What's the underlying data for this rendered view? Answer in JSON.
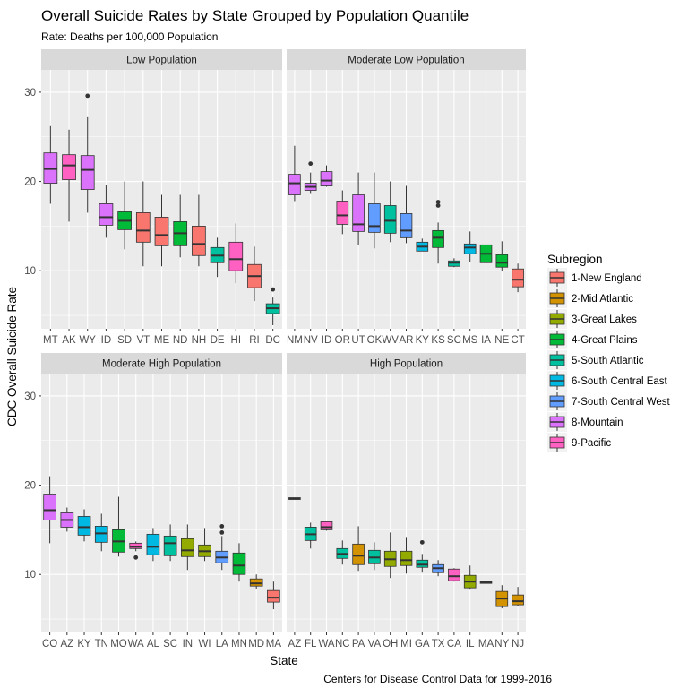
{
  "chart_data": {
    "type": "boxplot",
    "title": "Overall Suicide Rates by State Grouped by Population Quantile",
    "subtitle": "Rate: Deaths per 100,000 Population",
    "xlabel": "State",
    "ylabel": "CDC Overall Suicide Rate",
    "caption": "Centers for Disease Control Data for 1999-2016",
    "ylim": [
      3.5,
      32.5
    ],
    "y_ticks": [
      10,
      20,
      30
    ],
    "grid": true,
    "legend": {
      "title": "Subregion",
      "position": "right",
      "entries": [
        {
          "label": "1-New England",
          "color": "#F8766D"
        },
        {
          "label": "2-Mid Atlantic",
          "color": "#D39200"
        },
        {
          "label": "3-Great Lakes",
          "color": "#93AA00"
        },
        {
          "label": "4-Great Plains",
          "color": "#00BA38"
        },
        {
          "label": "5-South Atlantic",
          "color": "#00C19F"
        },
        {
          "label": "6-South Central East",
          "color": "#00B9E3"
        },
        {
          "label": "7-South Central West",
          "color": "#619CFF"
        },
        {
          "label": "8-Mountain",
          "color": "#DB72FB"
        },
        {
          "label": "9-Pacific",
          "color": "#FF61C3"
        }
      ]
    },
    "panels": [
      {
        "strip": "Low Population",
        "boxes": [
          {
            "state": "MT",
            "sub": 7,
            "lw": 17.5,
            "q1": 19.8,
            "med": 21.4,
            "q3": 23.2,
            "uw": 26.2,
            "out": []
          },
          {
            "state": "AK",
            "sub": 8,
            "lw": 15.5,
            "q1": 20.2,
            "med": 21.8,
            "q3": 23.0,
            "uw": 25.8,
            "out": []
          },
          {
            "state": "WY",
            "sub": 7,
            "lw": 16.5,
            "q1": 19.1,
            "med": 21.3,
            "q3": 22.9,
            "uw": 27.2,
            "out": [
              29.6
            ]
          },
          {
            "state": "ID",
            "sub": 7,
            "lw": 13.7,
            "q1": 15.1,
            "med": 16.0,
            "q3": 17.5,
            "uw": 19.6,
            "out": []
          },
          {
            "state": "SD",
            "sub": 3,
            "lw": 12.4,
            "q1": 14.6,
            "med": 15.6,
            "q3": 16.6,
            "uw": 20.0,
            "out": []
          },
          {
            "state": "VT",
            "sub": 0,
            "lw": 10.5,
            "q1": 13.2,
            "med": 14.5,
            "q3": 16.5,
            "uw": 20.0,
            "out": []
          },
          {
            "state": "ME",
            "sub": 0,
            "lw": 10.5,
            "q1": 12.8,
            "med": 14.0,
            "q3": 16.0,
            "uw": 18.5,
            "out": []
          },
          {
            "state": "ND",
            "sub": 3,
            "lw": 11.5,
            "q1": 12.8,
            "med": 14.2,
            "q3": 15.5,
            "uw": 18.5,
            "out": []
          },
          {
            "state": "NH",
            "sub": 0,
            "lw": 10.5,
            "q1": 11.7,
            "med": 13.0,
            "q3": 15.0,
            "uw": 18.5,
            "out": []
          },
          {
            "state": "DE",
            "sub": 4,
            "lw": 9.3,
            "q1": 10.9,
            "med": 11.7,
            "q3": 12.6,
            "uw": 13.7,
            "out": []
          },
          {
            "state": "HI",
            "sub": 8,
            "lw": 8.6,
            "q1": 10.0,
            "med": 11.3,
            "q3": 13.2,
            "uw": 15.3,
            "out": []
          },
          {
            "state": "RI",
            "sub": 0,
            "lw": 6.6,
            "q1": 8.1,
            "med": 9.4,
            "q3": 10.7,
            "uw": 12.7,
            "out": []
          },
          {
            "state": "DC",
            "sub": 4,
            "lw": 3.9,
            "q1": 5.2,
            "med": 5.8,
            "q3": 6.3,
            "uw": 7.0,
            "out": [
              7.9
            ]
          }
        ]
      },
      {
        "strip": "Moderate Low Population",
        "boxes": [
          {
            "state": "NM",
            "sub": 7,
            "lw": 17.8,
            "q1": 18.5,
            "med": 19.8,
            "q3": 20.8,
            "uw": 24.0,
            "out": []
          },
          {
            "state": "NV",
            "sub": 7,
            "lw": 18.6,
            "q1": 19.0,
            "med": 19.4,
            "q3": 19.8,
            "uw": 21.0,
            "out": [
              22.0
            ]
          },
          {
            "state": "ID",
            "sub": 7,
            "lw": 19.4,
            "q1": 19.5,
            "med": 20.1,
            "q3": 21.1,
            "uw": 21.8,
            "out": []
          },
          {
            "state": "OR",
            "sub": 8,
            "lw": 14.1,
            "q1": 15.2,
            "med": 16.2,
            "q3": 17.8,
            "uw": 19.0,
            "out": []
          },
          {
            "state": "UT",
            "sub": 7,
            "lw": 12.9,
            "q1": 14.4,
            "med": 15.2,
            "q3": 18.5,
            "uw": 21.0,
            "out": []
          },
          {
            "state": "OK",
            "sub": 6,
            "lw": 12.5,
            "q1": 14.3,
            "med": 15.0,
            "q3": 17.5,
            "uw": 21.0,
            "out": []
          },
          {
            "state": "WV",
            "sub": 4,
            "lw": 13.2,
            "q1": 14.2,
            "med": 15.6,
            "q3": 17.3,
            "uw": 20.0,
            "out": []
          },
          {
            "state": "AR",
            "sub": 6,
            "lw": 13.1,
            "q1": 13.7,
            "med": 14.5,
            "q3": 16.4,
            "uw": 19.5,
            "out": []
          },
          {
            "state": "KY",
            "sub": 5,
            "lw": 12.2,
            "q1": 12.2,
            "med": 12.7,
            "q3": 13.2,
            "uw": 13.6,
            "out": []
          },
          {
            "state": "KS",
            "sub": 3,
            "lw": 10.8,
            "q1": 12.6,
            "med": 13.7,
            "q3": 14.5,
            "uw": 15.4,
            "out": [
              17.3,
              17.7
            ]
          },
          {
            "state": "SC",
            "sub": 4,
            "lw": 10.4,
            "q1": 10.5,
            "med": 10.9,
            "q3": 11.1,
            "uw": 11.4,
            "out": []
          },
          {
            "state": "MS",
            "sub": 5,
            "lw": 11.0,
            "q1": 11.9,
            "med": 12.6,
            "q3": 13.0,
            "uw": 14.4,
            "out": []
          },
          {
            "state": "IA",
            "sub": 3,
            "lw": 9.9,
            "q1": 10.9,
            "med": 11.9,
            "q3": 12.9,
            "uw": 14.5,
            "out": []
          },
          {
            "state": "NE",
            "sub": 3,
            "lw": 10.0,
            "q1": 10.4,
            "med": 10.9,
            "q3": 11.8,
            "uw": 13.3,
            "out": []
          },
          {
            "state": "CT",
            "sub": 0,
            "lw": 7.6,
            "q1": 8.2,
            "med": 9.0,
            "q3": 10.2,
            "uw": 10.8,
            "out": []
          }
        ]
      },
      {
        "strip": "Moderate High Population",
        "boxes": [
          {
            "state": "CO",
            "sub": 7,
            "lw": 13.5,
            "q1": 16.1,
            "med": 17.2,
            "q3": 19.0,
            "uw": 21.0,
            "out": []
          },
          {
            "state": "AZ",
            "sub": 7,
            "lw": 14.8,
            "q1": 15.3,
            "med": 16.1,
            "q3": 16.9,
            "uw": 17.5,
            "out": []
          },
          {
            "state": "KY",
            "sub": 5,
            "lw": 13.7,
            "q1": 14.4,
            "med": 15.3,
            "q3": 16.5,
            "uw": 17.3,
            "out": []
          },
          {
            "state": "TN",
            "sub": 5,
            "lw": 12.6,
            "q1": 13.6,
            "med": 14.6,
            "q3": 15.4,
            "uw": 16.8,
            "out": []
          },
          {
            "state": "MO",
            "sub": 3,
            "lw": 12.0,
            "q1": 12.5,
            "med": 13.7,
            "q3": 15.0,
            "uw": 18.7,
            "out": []
          },
          {
            "state": "WA",
            "sub": 8,
            "lw": 12.6,
            "q1": 12.9,
            "med": 13.1,
            "q3": 13.5,
            "uw": 13.7,
            "out": [
              11.9
            ]
          },
          {
            "state": "AL",
            "sub": 5,
            "lw": 11.5,
            "q1": 12.2,
            "med": 13.1,
            "q3": 14.5,
            "uw": 15.2,
            "out": []
          },
          {
            "state": "SC",
            "sub": 4,
            "lw": 11.5,
            "q1": 12.1,
            "med": 13.5,
            "q3": 14.3,
            "uw": 15.6,
            "out": []
          },
          {
            "state": "IN",
            "sub": 2,
            "lw": 10.5,
            "q1": 12.0,
            "med": 12.7,
            "q3": 14.0,
            "uw": 15.6,
            "out": []
          },
          {
            "state": "WI",
            "sub": 2,
            "lw": 11.5,
            "q1": 12.0,
            "med": 12.6,
            "q3": 13.3,
            "uw": 15.2,
            "out": []
          },
          {
            "state": "LA",
            "sub": 6,
            "lw": 10.5,
            "q1": 11.3,
            "med": 11.9,
            "q3": 12.6,
            "uw": 14.3,
            "out": [
              14.7,
              15.4
            ]
          },
          {
            "state": "MN",
            "sub": 3,
            "lw": 9.2,
            "q1": 10.0,
            "med": 11.0,
            "q3": 12.4,
            "uw": 13.5,
            "out": []
          },
          {
            "state": "MD",
            "sub": 1,
            "lw": 8.4,
            "q1": 8.7,
            "med": 9.0,
            "q3": 9.5,
            "uw": 10.0,
            "out": []
          },
          {
            "state": "MA",
            "sub": 0,
            "lw": 6.1,
            "q1": 6.9,
            "med": 7.4,
            "q3": 8.2,
            "uw": 9.2,
            "out": []
          }
        ]
      },
      {
        "strip": "High Population",
        "boxes": [
          {
            "state": "AZ",
            "sub": 7,
            "lw": 18.4,
            "q1": 18.4,
            "med": 18.5,
            "q3": 18.6,
            "uw": 18.6,
            "out": []
          },
          {
            "state": "FL",
            "sub": 4,
            "lw": 12.9,
            "q1": 13.8,
            "med": 14.5,
            "q3": 15.3,
            "uw": 15.8,
            "out": []
          },
          {
            "state": "WA",
            "sub": 8,
            "lw": 14.9,
            "q1": 15.0,
            "med": 15.3,
            "q3": 15.9,
            "uw": 15.9,
            "out": []
          },
          {
            "state": "NC",
            "sub": 4,
            "lw": 11.1,
            "q1": 11.8,
            "med": 12.3,
            "q3": 12.9,
            "uw": 13.8,
            "out": []
          },
          {
            "state": "PA",
            "sub": 1,
            "lw": 10.4,
            "q1": 11.1,
            "med": 12.1,
            "q3": 13.4,
            "uw": 15.4,
            "out": []
          },
          {
            "state": "VA",
            "sub": 4,
            "lw": 10.5,
            "q1": 11.2,
            "med": 11.9,
            "q3": 12.7,
            "uw": 13.6,
            "out": []
          },
          {
            "state": "OH",
            "sub": 2,
            "lw": 9.6,
            "q1": 10.9,
            "med": 11.7,
            "q3": 12.6,
            "uw": 14.7,
            "out": []
          },
          {
            "state": "MI",
            "sub": 2,
            "lw": 10.1,
            "q1": 11.0,
            "med": 11.6,
            "q3": 12.6,
            "uw": 14.2,
            "out": []
          },
          {
            "state": "GA",
            "sub": 4,
            "lw": 10.2,
            "q1": 10.8,
            "med": 11.1,
            "q3": 11.6,
            "uw": 12.3,
            "out": [
              13.6
            ]
          },
          {
            "state": "TX",
            "sub": 6,
            "lw": 9.8,
            "q1": 10.2,
            "med": 10.7,
            "q3": 11.1,
            "uw": 11.6,
            "out": []
          },
          {
            "state": "CA",
            "sub": 8,
            "lw": 9.2,
            "q1": 9.3,
            "med": 9.8,
            "q3": 10.6,
            "uw": 10.7,
            "out": []
          },
          {
            "state": "IL",
            "sub": 2,
            "lw": 8.3,
            "q1": 8.5,
            "med": 9.2,
            "q3": 9.9,
            "uw": 11.0,
            "out": []
          },
          {
            "state": "MA",
            "sub": 0,
            "lw": 8.9,
            "q1": 9.0,
            "med": 9.1,
            "q3": 9.2,
            "uw": 9.3,
            "out": []
          },
          {
            "state": "NY",
            "sub": 1,
            "lw": 6.2,
            "q1": 6.4,
            "med": 7.3,
            "q3": 8.1,
            "uw": 8.8,
            "out": []
          },
          {
            "state": "NJ",
            "sub": 1,
            "lw": 6.5,
            "q1": 6.6,
            "med": 7.0,
            "q3": 7.7,
            "uw": 8.6,
            "out": []
          }
        ]
      }
    ]
  }
}
